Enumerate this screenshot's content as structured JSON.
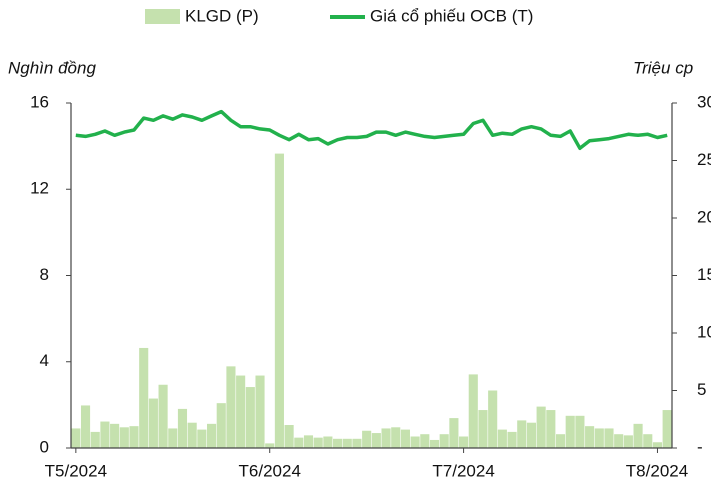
{
  "chart_data": {
    "type": "combo",
    "ylabel": "Nghìn đồng",
    "y2label": "Triệu cp",
    "categories": [
      "T5/2024",
      null,
      null,
      null,
      null,
      null,
      null,
      null,
      null,
      null,
      null,
      null,
      null,
      null,
      null,
      null,
      null,
      null,
      null,
      null,
      "T6/2024",
      null,
      null,
      null,
      null,
      null,
      null,
      null,
      null,
      null,
      null,
      null,
      null,
      null,
      null,
      null,
      null,
      null,
      null,
      null,
      "T7/2024",
      null,
      null,
      null,
      null,
      null,
      null,
      null,
      null,
      null,
      null,
      null,
      null,
      null,
      null,
      null,
      null,
      null,
      null,
      null,
      "T8/2024",
      null
    ],
    "series": [
      {
        "name": "KLGD (P)",
        "type": "bar",
        "axis": "y2",
        "color": "#c5e1ae",
        "values": [
          1.7,
          3.7,
          1.4,
          2.3,
          2.1,
          1.8,
          1.9,
          8.7,
          4.3,
          5.5,
          1.7,
          3.4,
          2.2,
          1.6,
          2.1,
          3.9,
          7.1,
          6.3,
          5.3,
          6.3,
          0.4,
          25.6,
          2.0,
          0.9,
          1.1,
          0.9,
          1.0,
          0.8,
          0.8,
          0.8,
          1.5,
          1.3,
          1.7,
          1.8,
          1.6,
          1.0,
          1.2,
          0.7,
          1.2,
          2.6,
          1.0,
          6.4,
          3.3,
          5.0,
          1.6,
          1.4,
          2.4,
          2.2,
          3.6,
          3.3,
          1.2,
          2.8,
          2.8,
          1.9,
          1.7,
          1.7,
          1.2,
          1.1,
          2.1,
          1.2,
          0.5,
          3.3
        ]
      },
      {
        "name": "Giá cổ phiếu OCB (T)",
        "type": "line",
        "color": "#22b14c",
        "values": [
          14.5,
          14.45,
          14.55,
          14.7,
          14.5,
          14.65,
          14.75,
          15.3,
          15.2,
          15.4,
          15.25,
          15.45,
          15.35,
          15.2,
          15.4,
          15.6,
          15.2,
          14.9,
          14.9,
          14.8,
          14.75,
          14.5,
          14.3,
          14.55,
          14.3,
          14.35,
          14.1,
          14.3,
          14.4,
          14.4,
          14.45,
          14.65,
          14.65,
          14.5,
          14.65,
          14.55,
          14.45,
          14.4,
          14.45,
          14.5,
          14.55,
          15.05,
          15.2,
          14.5,
          14.6,
          14.55,
          14.8,
          14.9,
          14.8,
          14.5,
          14.45,
          14.7,
          13.9,
          14.25,
          14.3,
          14.35,
          14.45,
          14.55,
          14.5,
          14.55,
          14.4,
          14.5
        ]
      }
    ],
    "ylim": [
      0,
      16
    ],
    "yticks": [
      0,
      4,
      8,
      12,
      16
    ],
    "y2lim": [
      0,
      30
    ],
    "y2ticks": [
      {
        "value": 0,
        "label": "-"
      },
      5,
      10,
      15,
      20,
      25,
      30
    ]
  }
}
